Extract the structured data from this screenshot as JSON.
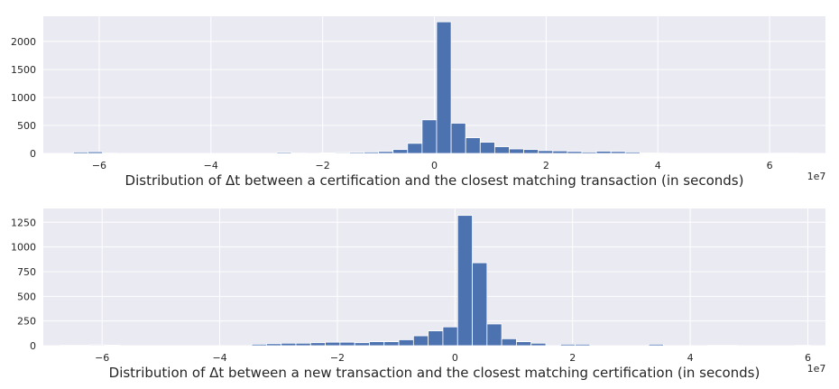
{
  "chart_data": [
    {
      "type": "bar",
      "xlabel": "Distribution of Δt between a certification and the closest matching transaction (in seconds)",
      "offset_label": "1e7",
      "xlim": [
        -7.0,
        7.0
      ],
      "ylim": [
        0,
        2450
      ],
      "xticks": [
        -6,
        -4,
        -2,
        0,
        2,
        4,
        6
      ],
      "xtick_labels": [
        "−6",
        "−4",
        "−2",
        "0",
        "2",
        "4",
        "6"
      ],
      "yticks": [
        0,
        500,
        1000,
        1500,
        2000
      ],
      "ytick_labels": [
        "0",
        "500",
        "1000",
        "1500",
        "2000"
      ],
      "bin_width": 0.26,
      "bins": [
        {
          "x": -6.33,
          "count": 25
        },
        {
          "x": -6.07,
          "count": 30
        },
        {
          "x": -5.81,
          "count": 5
        },
        {
          "x": -2.69,
          "count": 20
        },
        {
          "x": -2.43,
          "count": 5
        },
        {
          "x": -1.91,
          "count": 10
        },
        {
          "x": -1.65,
          "count": 15
        },
        {
          "x": -1.39,
          "count": 20
        },
        {
          "x": -1.13,
          "count": 25
        },
        {
          "x": -0.87,
          "count": 35
        },
        {
          "x": -0.61,
          "count": 70
        },
        {
          "x": -0.35,
          "count": 180
        },
        {
          "x": -0.09,
          "count": 600
        },
        {
          "x": 0.17,
          "count": 2350
        },
        {
          "x": 0.43,
          "count": 540
        },
        {
          "x": 0.69,
          "count": 280
        },
        {
          "x": 0.95,
          "count": 200
        },
        {
          "x": 1.21,
          "count": 120
        },
        {
          "x": 1.47,
          "count": 80
        },
        {
          "x": 1.73,
          "count": 70
        },
        {
          "x": 1.99,
          "count": 50
        },
        {
          "x": 2.25,
          "count": 45
        },
        {
          "x": 2.51,
          "count": 35
        },
        {
          "x": 2.77,
          "count": 25
        },
        {
          "x": 3.03,
          "count": 40
        },
        {
          "x": 3.29,
          "count": 35
        },
        {
          "x": 3.55,
          "count": 25
        },
        {
          "x": 3.81,
          "count": 8
        },
        {
          "x": 4.07,
          "count": 5
        },
        {
          "x": 6.15,
          "count": 5
        },
        {
          "x": 6.41,
          "count": 5
        }
      ]
    },
    {
      "type": "bar",
      "xlabel": "Distribution of Δt between a new transaction and the closest matching certification (in seconds)",
      "offset_label": "1e7",
      "xlim": [
        -7.0,
        6.3
      ],
      "ylim": [
        0,
        1390
      ],
      "xticks": [
        -6,
        -4,
        -2,
        0,
        2,
        4,
        6
      ],
      "xtick_labels": [
        "−6",
        "−4",
        "−2",
        "0",
        "2",
        "4",
        "6"
      ],
      "yticks": [
        0,
        250,
        500,
        750,
        1000,
        1250
      ],
      "ytick_labels": [
        "0",
        "250",
        "500",
        "750",
        "1000",
        "1250"
      ],
      "bin_width": 0.25,
      "bins": [
        {
          "x": -6.58,
          "count": 3
        },
        {
          "x": -6.33,
          "count": 3
        },
        {
          "x": -6.08,
          "count": 8
        },
        {
          "x": -5.83,
          "count": 5
        },
        {
          "x": -3.33,
          "count": 15
        },
        {
          "x": -3.08,
          "count": 20
        },
        {
          "x": -2.83,
          "count": 25
        },
        {
          "x": -2.58,
          "count": 25
        },
        {
          "x": -2.33,
          "count": 30
        },
        {
          "x": -2.08,
          "count": 35
        },
        {
          "x": -1.83,
          "count": 35
        },
        {
          "x": -1.58,
          "count": 30
        },
        {
          "x": -1.33,
          "count": 40
        },
        {
          "x": -1.08,
          "count": 40
        },
        {
          "x": -0.83,
          "count": 60
        },
        {
          "x": -0.58,
          "count": 100
        },
        {
          "x": -0.33,
          "count": 150
        },
        {
          "x": -0.08,
          "count": 190
        },
        {
          "x": 0.17,
          "count": 1320
        },
        {
          "x": 0.42,
          "count": 840
        },
        {
          "x": 0.67,
          "count": 220
        },
        {
          "x": 0.92,
          "count": 70
        },
        {
          "x": 1.17,
          "count": 40
        },
        {
          "x": 1.42,
          "count": 25
        },
        {
          "x": 1.92,
          "count": 15
        },
        {
          "x": 2.17,
          "count": 15
        },
        {
          "x": 3.42,
          "count": 15
        },
        {
          "x": 4.42,
          "count": 3
        },
        {
          "x": 4.67,
          "count": 3
        },
        {
          "x": 5.92,
          "count": 3
        }
      ]
    }
  ],
  "colors": {
    "background": "#ffffff",
    "axes_face": "#eaeaf2",
    "grid": "#ffffff",
    "bar": "#4c72b0",
    "text": "#262626"
  }
}
